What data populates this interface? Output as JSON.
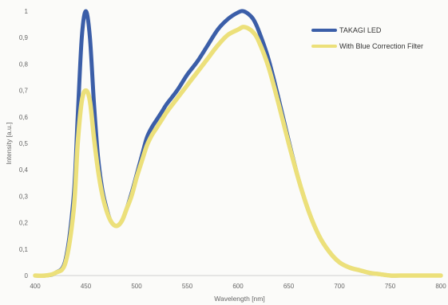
{
  "chart_data": {
    "type": "line",
    "title": "",
    "xlabel": "Wavelength [nm]",
    "ylabel": "Intensity [a.u.]",
    "xlim": [
      400,
      800
    ],
    "ylim": [
      0,
      1
    ],
    "x_ticks": [
      "400",
      "450",
      "500",
      "550",
      "600",
      "650",
      "700",
      "750",
      "800"
    ],
    "y_ticks": [
      "0",
      "0,1",
      "0,2",
      "0,3",
      "0,4",
      "0,5",
      "0,6",
      "0,7",
      "0,8",
      "0,9",
      "1"
    ],
    "grid": false,
    "legend_position": "top-right",
    "series": [
      {
        "name": "TAKAGI LED",
        "color": "#3b5ea8",
        "x": [
          400,
          410,
          420,
          430,
          438,
          442,
          446,
          450,
          454,
          458,
          462,
          466,
          470,
          474,
          478,
          482,
          486,
          490,
          495,
          500,
          505,
          510,
          515,
          520,
          525,
          530,
          540,
          550,
          560,
          570,
          580,
          590,
          600,
          605,
          610,
          615,
          620,
          630,
          640,
          650,
          660,
          670,
          680,
          690,
          700,
          710,
          720,
          730,
          740,
          750,
          760,
          780,
          800
        ],
        "y": [
          0,
          0,
          0.01,
          0.06,
          0.3,
          0.6,
          0.9,
          1.0,
          0.9,
          0.65,
          0.45,
          0.33,
          0.26,
          0.21,
          0.19,
          0.19,
          0.21,
          0.25,
          0.31,
          0.38,
          0.45,
          0.52,
          0.56,
          0.59,
          0.62,
          0.65,
          0.7,
          0.76,
          0.81,
          0.87,
          0.93,
          0.97,
          0.995,
          1.0,
          0.99,
          0.97,
          0.93,
          0.82,
          0.67,
          0.51,
          0.36,
          0.24,
          0.15,
          0.09,
          0.05,
          0.03,
          0.02,
          0.01,
          0.005,
          0,
          0,
          0,
          0
        ]
      },
      {
        "name": "With Blue Correction Filter",
        "color": "#ece07a",
        "x": [
          400,
          410,
          420,
          430,
          438,
          442,
          446,
          450,
          454,
          458,
          462,
          466,
          470,
          474,
          478,
          482,
          486,
          490,
          495,
          500,
          505,
          510,
          515,
          520,
          525,
          530,
          540,
          550,
          560,
          570,
          580,
          590,
          600,
          605,
          610,
          615,
          620,
          630,
          640,
          650,
          660,
          670,
          680,
          690,
          700,
          710,
          720,
          730,
          740,
          750,
          760,
          780,
          800
        ],
        "y": [
          0,
          0,
          0.01,
          0.05,
          0.25,
          0.5,
          0.66,
          0.7,
          0.66,
          0.52,
          0.4,
          0.31,
          0.25,
          0.21,
          0.19,
          0.19,
          0.21,
          0.25,
          0.3,
          0.37,
          0.43,
          0.49,
          0.53,
          0.56,
          0.59,
          0.62,
          0.67,
          0.72,
          0.77,
          0.82,
          0.87,
          0.91,
          0.93,
          0.94,
          0.935,
          0.92,
          0.89,
          0.79,
          0.65,
          0.5,
          0.36,
          0.24,
          0.15,
          0.09,
          0.05,
          0.03,
          0.02,
          0.01,
          0.005,
          0,
          0,
          0,
          0
        ]
      }
    ]
  }
}
